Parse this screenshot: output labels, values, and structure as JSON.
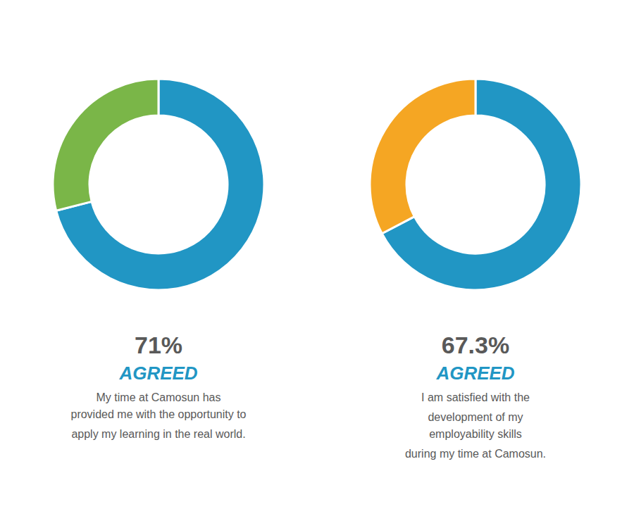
{
  "chart_data": [
    {
      "type": "donut",
      "values": [
        71,
        29
      ],
      "colors": [
        "#2196C4",
        "#7AB648"
      ],
      "annotations": [
        "71%",
        "AGREED",
        "My time at Camosun has\nprovided me with the opportunity to",
        "apply my learning in the real world."
      ]
    },
    {
      "type": "donut",
      "values": [
        67.3,
        32.7
      ],
      "colors": [
        "#2196C4",
        "#F5A623"
      ],
      "annotations": [
        "67.3%",
        "AGREED",
        "I am satisfied with the",
        "development of my\nemployability skills",
        "during my time at Camosun."
      ]
    }
  ]
}
